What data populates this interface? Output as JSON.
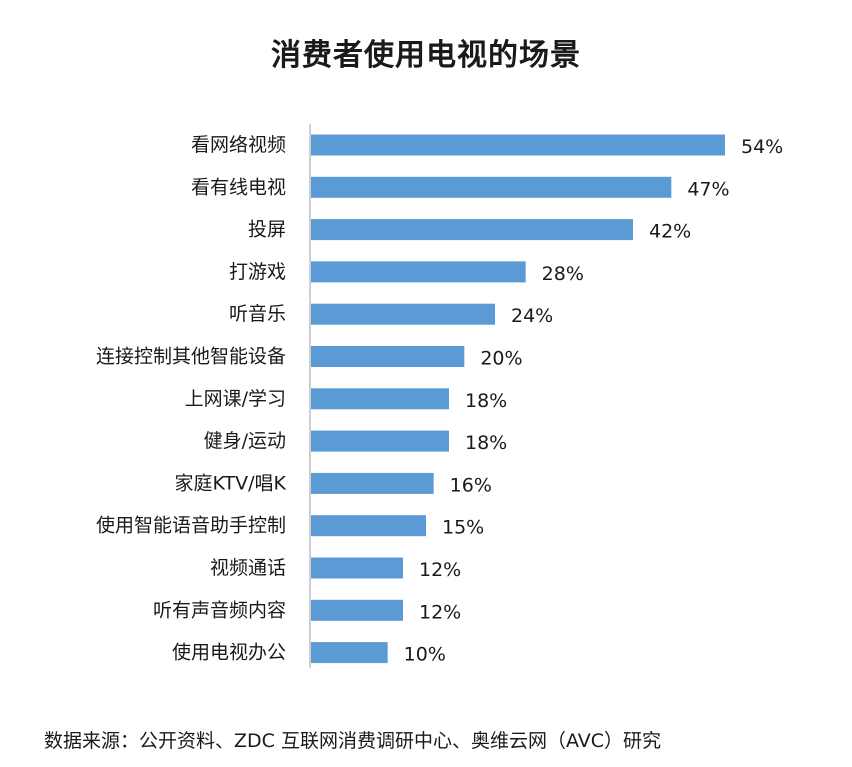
{
  "chart_data": {
    "type": "bar",
    "orientation": "horizontal",
    "title": "消费者使用电视的场景",
    "categories": [
      "看网络视频",
      "看有线电视",
      "投屏",
      "打游戏",
      "听音乐",
      "连接控制其他智能设备",
      "上网课/学习",
      "健身/运动",
      "家庭KTV/唱K",
      "使用智能语音助手控制",
      "视频通话",
      "听有声音频内容",
      "使用电视办公"
    ],
    "values": [
      54,
      47,
      42,
      28,
      24,
      20,
      18,
      18,
      16,
      15,
      12,
      12,
      10
    ],
    "value_labels": [
      "54%",
      "47%",
      "42%",
      "28%",
      "24%",
      "20%",
      "18%",
      "18%",
      "16%",
      "15%",
      "12%",
      "12%",
      "10%"
    ],
    "unit": "%",
    "xlim": [
      0,
      54
    ],
    "grid": false,
    "legend": "none",
    "bar_color": "#5b9bd5",
    "axis_color": "#bfbfbf"
  },
  "source": "数据来源：公开资料、ZDC 互联网消费调研中心、奥维云网（AVC）研究"
}
